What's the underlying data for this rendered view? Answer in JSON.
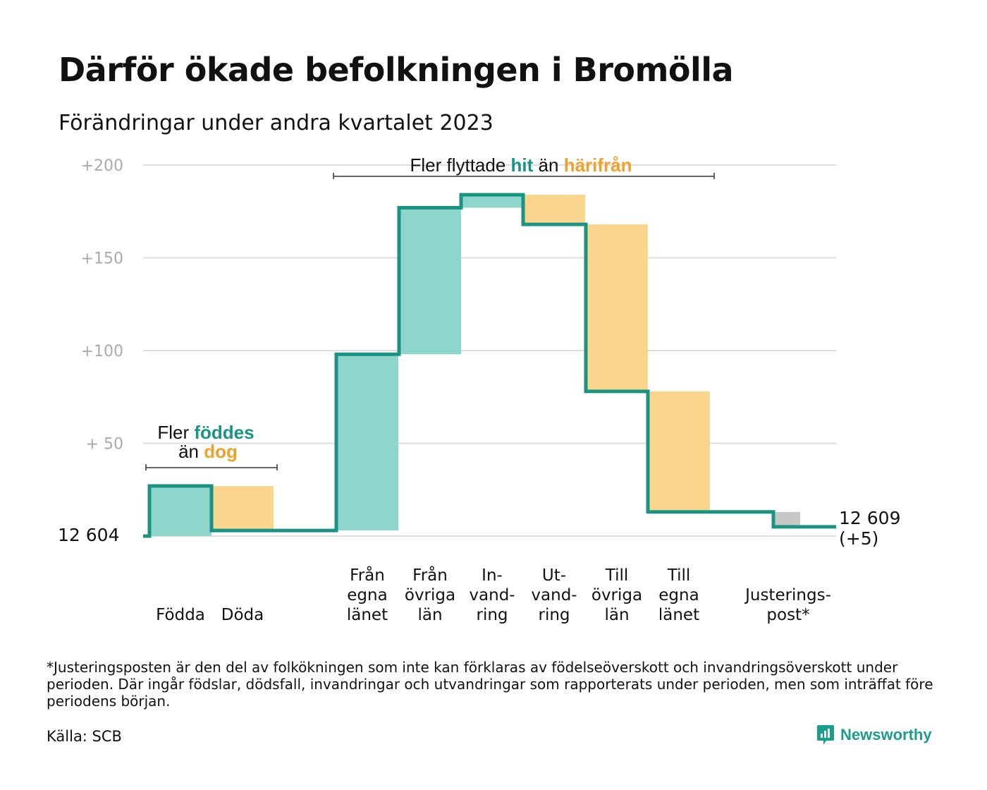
{
  "title": "Därför ökade befolkningen i Bromölla",
  "subtitle": "Förändringar under andra kvartalet 2023",
  "footnote": "*Justeringsposten är den del av folkökningen som inte kan förklaras av födelseöverskott och invandringsöverskott under perioden. Där ingår födslar, dödsfall, invandringar och utvandringar som rapporterats under perioden, men som inträffat före periodens början.",
  "source": "Källa: SCB",
  "logo": {
    "text": "Newsworthy",
    "icon": "bar-chart-speech-icon"
  },
  "colors": {
    "increase": "#8ed5cc",
    "decrease": "#fad58e",
    "adjustment": "#c8c8c8",
    "line": "#1a9382",
    "teal_text": "#1a9382",
    "orange_text": "#f0a12a",
    "grid": "#dddddd",
    "tick": "#aaaaaa"
  },
  "chart_data": {
    "type": "waterfall",
    "start_label": "12  604",
    "start_value": 12604,
    "end_label_line1": "12 609",
    "end_label_line2": "(+5)",
    "end_value": 12609,
    "y_ticks": [
      {
        "value": 200,
        "label": "+200"
      },
      {
        "value": 150,
        "label": "+150"
      },
      {
        "value": 100,
        "label": "+100"
      },
      {
        "value": 50,
        "label": "+  50"
      }
    ],
    "ylim": [
      0,
      200
    ],
    "steps": [
      {
        "label_lines": [
          "Födda"
        ],
        "change": 27,
        "kind": "increase"
      },
      {
        "label_lines": [
          "Döda"
        ],
        "change": -24,
        "kind": "decrease"
      },
      {
        "label_lines": [
          "Från",
          "egna",
          "länet"
        ],
        "change": 95,
        "kind": "increase"
      },
      {
        "label_lines": [
          "Från",
          "övriga",
          "län"
        ],
        "change": 79,
        "kind": "increase"
      },
      {
        "label_lines": [
          "In-",
          "vand-",
          "ring"
        ],
        "change": 7,
        "kind": "increase"
      },
      {
        "label_lines": [
          "Ut-",
          "vand-",
          "ring"
        ],
        "change": -16,
        "kind": "decrease"
      },
      {
        "label_lines": [
          "Till",
          "övriga",
          "län"
        ],
        "change": -90,
        "kind": "decrease"
      },
      {
        "label_lines": [
          "Till",
          "egna",
          "länet"
        ],
        "change": -65,
        "kind": "decrease"
      },
      {
        "label_lines": [
          "Justerings-",
          "post*"
        ],
        "change": -8,
        "kind": "adjustment"
      }
    ],
    "annotations": [
      {
        "text_parts": [
          {
            "text": "Fler ",
            "style": "normal"
          },
          {
            "text": "föddes",
            "style": "teal"
          }
        ],
        "text_parts_line2": [
          {
            "text": "än ",
            "style": "normal"
          },
          {
            "text": "dog",
            "style": "orange"
          }
        ],
        "covers_steps": [
          0,
          1
        ]
      },
      {
        "text_parts": [
          {
            "text": "Fler flyttade ",
            "style": "normal"
          },
          {
            "text": "hit",
            "style": "teal"
          },
          {
            "text": " än ",
            "style": "normal"
          },
          {
            "text": "härifrån",
            "style": "orange"
          }
        ],
        "covers_steps": [
          2,
          7
        ]
      }
    ]
  }
}
